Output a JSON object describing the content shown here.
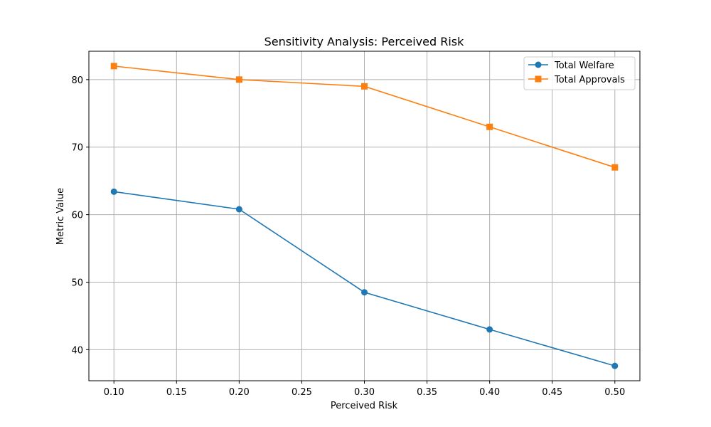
{
  "chart_data": {
    "type": "line",
    "title": "Sensitivity Analysis: Perceived Risk",
    "xlabel": "Perceived Risk",
    "ylabel": "Metric Value",
    "x": [
      0.1,
      0.2,
      0.3,
      0.4,
      0.5
    ],
    "xlim": [
      0.08,
      0.52
    ],
    "ylim": [
      35.4,
      84.2
    ],
    "xticks": [
      0.1,
      0.15,
      0.2,
      0.25,
      0.3,
      0.35,
      0.4,
      0.45,
      0.5
    ],
    "xtick_labels": [
      "0.10",
      "0.15",
      "0.20",
      "0.25",
      "0.30",
      "0.35",
      "0.40",
      "0.45",
      "0.50"
    ],
    "yticks": [
      40,
      50,
      60,
      70,
      80
    ],
    "ytick_labels": [
      "40",
      "50",
      "60",
      "70",
      "80"
    ],
    "grid": true,
    "legend_position": "top-right",
    "series": [
      {
        "name": "Total Welfare",
        "values": [
          63.4,
          60.8,
          48.5,
          43.0,
          37.6
        ],
        "color": "#1f77b4",
        "marker": "circle"
      },
      {
        "name": "Total Approvals",
        "values": [
          82.0,
          80.0,
          79.0,
          73.0,
          67.0
        ],
        "color": "#ff7f0e",
        "marker": "square"
      }
    ]
  }
}
